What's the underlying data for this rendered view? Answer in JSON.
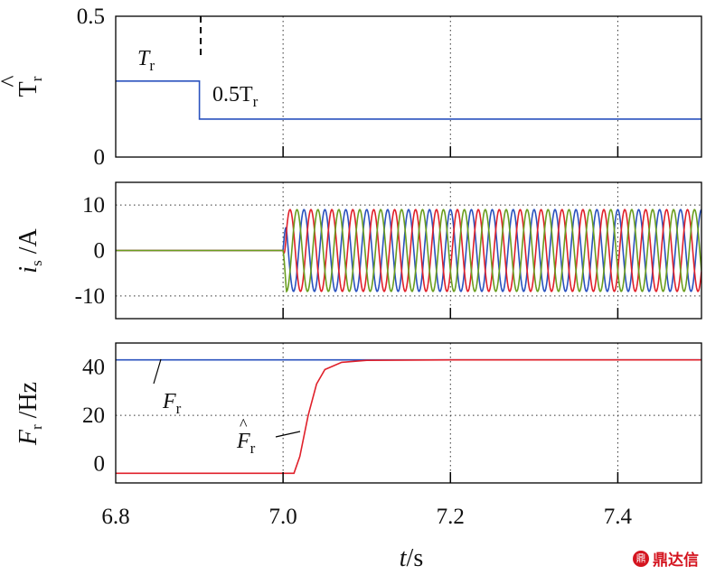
{
  "chart_data": [
    {
      "type": "line",
      "ylabel_main": "T",
      "ylabel_hat": "^",
      "ylabel_sub": "r",
      "xlim": [
        6.8,
        7.5
      ],
      "ylim": [
        0,
        0.5
      ],
      "yticks": [
        "0",
        "0.5"
      ],
      "x_grid": [
        7.0,
        7.2,
        7.4
      ],
      "series": [
        {
          "name": "T_r estimate",
          "color": "#2a52be",
          "x": [
            6.8,
            6.9,
            6.9,
            7.5
          ],
          "y": [
            0.27,
            0.27,
            0.135,
            0.135
          ]
        }
      ],
      "annotations": [
        {
          "main": "T",
          "sub": "r",
          "text": "Tr"
        },
        {
          "main": "0.5T",
          "sub": "r",
          "text": "0.5Tr"
        }
      ],
      "marker_x": 6.9
    },
    {
      "type": "line",
      "ylabel_main": "i",
      "ylabel_sub": "s",
      "ylabel_unit": " /A",
      "xlim": [
        6.8,
        7.5
      ],
      "ylim": [
        -15,
        15
      ],
      "yticks": [
        "10",
        "0",
        "-10"
      ],
      "ytick_values": [
        10,
        0,
        -10
      ],
      "x_grid": [
        7.0,
        7.2,
        7.4
      ],
      "y_grid": [
        10,
        -10
      ],
      "series": [
        {
          "name": "phase a",
          "color": "#2a52be",
          "phase_deg": 0
        },
        {
          "name": "phase b",
          "color": "#e0202a",
          "phase_deg": -120
        },
        {
          "name": "phase c",
          "color": "#6a9e1f",
          "phase_deg": 120
        }
      ],
      "amplitude": 9,
      "start_time": 7.0,
      "frequency_hz": 40
    },
    {
      "type": "line",
      "ylabel_main": "F",
      "ylabel_sub": "r",
      "ylabel_unit": " /Hz",
      "xlim": [
        6.8,
        7.5
      ],
      "ylim": [
        -8,
        50
      ],
      "yticks": [
        "40",
        "20",
        "0"
      ],
      "ytick_values": [
        40,
        20,
        0
      ],
      "x_grid": [
        7.0,
        7.2,
        7.4
      ],
      "y_grid": [
        20
      ],
      "series": [
        {
          "name": "F_r",
          "color": "#2a52be",
          "x": [
            6.8,
            7.5
          ],
          "y": [
            43,
            43
          ]
        },
        {
          "name": "F_r estimate",
          "color": "#e0202a",
          "x": [
            6.8,
            7.013,
            7.02,
            7.03,
            7.04,
            7.05,
            7.07,
            7.1,
            7.2,
            7.5
          ],
          "y": [
            -4,
            -4,
            3,
            20,
            33,
            39,
            42,
            42.8,
            43,
            43
          ]
        }
      ],
      "annotations": [
        {
          "main": "F",
          "sub": "r",
          "hat": false,
          "text": "Fr"
        },
        {
          "main": "F",
          "sub": "r",
          "hat": true,
          "text": "F̂r"
        }
      ]
    }
  ],
  "xaxis": {
    "ticks": [
      "6.8",
      "7.0",
      "7.2",
      "7.4"
    ],
    "tick_values": [
      6.8,
      7.0,
      7.2,
      7.4
    ],
    "label_main": "t",
    "label_unit": "/s"
  },
  "watermark": {
    "icon": "鼎",
    "text": "鼎达信"
  }
}
